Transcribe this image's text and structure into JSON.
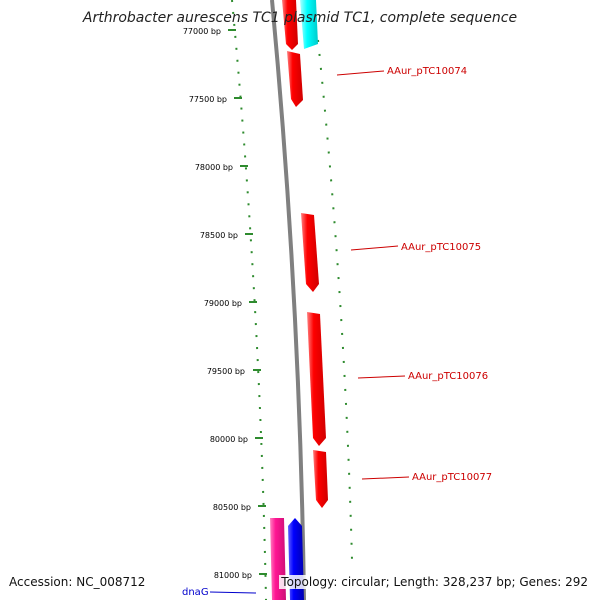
{
  "title": "Arthrobacter aurescens TC1 plasmid TC1, complete sequence",
  "accession": "Accession: NC_008712",
  "topology": "Topology: circular; Length: 328,237 bp; Genes: 292",
  "colors": {
    "backbone": "#808080",
    "forward_gene": "#ff0000",
    "label_red": "#cc0000",
    "label_blue": "#0000cc",
    "tick_green": "#2e8b2e",
    "cyan_gene": "#00ffff",
    "magenta_gene": "#ff1493",
    "blue_gene": "#0000ff"
  },
  "ruler": {
    "unit": "bp",
    "ticks": [
      {
        "label": "77000 bp",
        "bp": 77000
      },
      {
        "label": "77500 bp",
        "bp": 77500
      },
      {
        "label": "78000 bp",
        "bp": 78000
      },
      {
        "label": "78500 bp",
        "bp": 78500
      },
      {
        "label": "79000 bp",
        "bp": 79000
      },
      {
        "label": "79500 bp",
        "bp": 79500
      },
      {
        "label": "80000 bp",
        "bp": 80000
      },
      {
        "label": "80500 bp",
        "bp": 80500
      },
      {
        "label": "81000 bp",
        "bp": 81000
      }
    ]
  },
  "labeled_genes": [
    {
      "name": "AAur_pTC10074",
      "color": "#cc0000"
    },
    {
      "name": "AAur_pTC10075",
      "color": "#cc0000"
    },
    {
      "name": "AAur_pTC10076",
      "color": "#cc0000"
    },
    {
      "name": "AAur_pTC10077",
      "color": "#cc0000"
    },
    {
      "name": "dnaG",
      "color": "#0000cc"
    }
  ]
}
